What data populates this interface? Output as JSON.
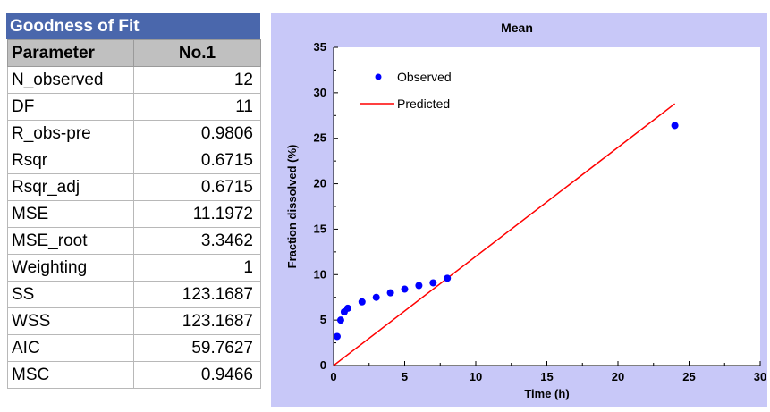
{
  "table": {
    "title": "Goodness of Fit",
    "headers": [
      "Parameter",
      "No.1"
    ],
    "rows": [
      {
        "name": "N_observed",
        "value": "12"
      },
      {
        "name": "DF",
        "value": "11"
      },
      {
        "name": "R_obs-pre",
        "value": "0.9806"
      },
      {
        "name": "Rsqr",
        "value": "0.6715"
      },
      {
        "name": "Rsqr_adj",
        "value": "0.6715"
      },
      {
        "name": "MSE",
        "value": "11.1972"
      },
      {
        "name": "MSE_root",
        "value": "3.3462"
      },
      {
        "name": "Weighting",
        "value": "1"
      },
      {
        "name": "SS",
        "value": "123.1687"
      },
      {
        "name": "WSS",
        "value": "123.1687"
      },
      {
        "name": "AIC",
        "value": "59.7627"
      },
      {
        "name": "MSC",
        "value": "0.9466"
      }
    ]
  },
  "chart_data": {
    "type": "scatter",
    "title": "Mean",
    "xlabel": "Time (h)",
    "ylabel": "Fraction dissolved (%)",
    "xlim": [
      0,
      30
    ],
    "ylim": [
      0,
      35
    ],
    "xticks": [
      0,
      5,
      10,
      15,
      20,
      25,
      30
    ],
    "yticks": [
      0,
      5,
      10,
      15,
      20,
      25,
      30,
      35
    ],
    "grid": false,
    "legend_position": "top-left",
    "series": [
      {
        "name": "Observed",
        "kind": "points",
        "color": "#0000ff",
        "x": [
          0.25,
          0.5,
          0.75,
          1,
          2,
          3,
          4,
          5,
          6,
          7,
          8,
          24
        ],
        "y": [
          3.2,
          5.0,
          5.9,
          6.3,
          7.0,
          7.5,
          8.0,
          8.4,
          8.8,
          9.1,
          9.6,
          26.4
        ]
      },
      {
        "name": "Predicted",
        "kind": "line",
        "color": "#ff0000",
        "x": [
          0,
          24
        ],
        "y": [
          0,
          28.8
        ]
      }
    ]
  },
  "colors": {
    "table_title_bg": "#4a67ac",
    "table_header_bg": "#c0c0c0",
    "chart_bg": "#c8c8f8",
    "plot_bg": "#ffffff"
  }
}
